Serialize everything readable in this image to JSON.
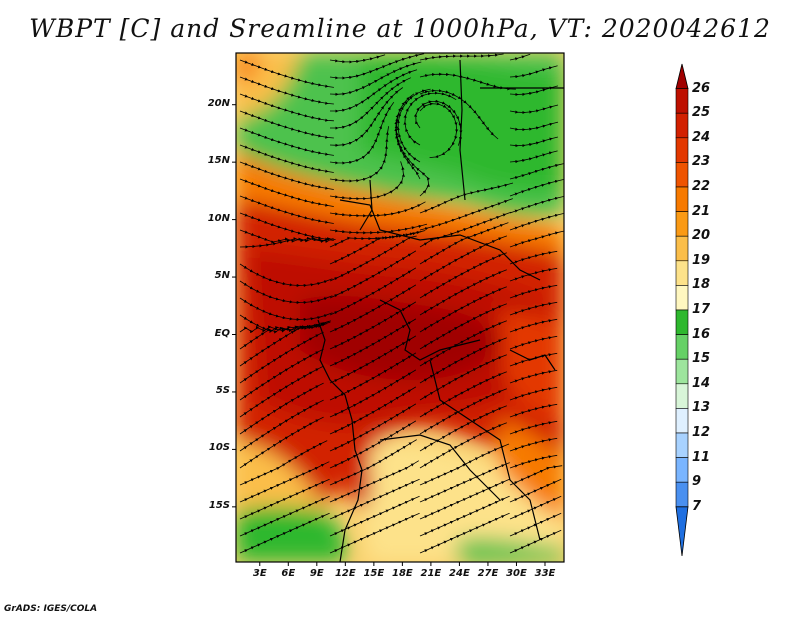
{
  "title": "WBPT [C] and Sreamline at 1000hPa, VT: 2020042612",
  "footer": "GrADS: IGES/COLA",
  "chart_data": {
    "type": "heatmap",
    "title": "WBPT [C] and Sreamline at 1000hPa, VT: 2020042612",
    "lat_ticks": [
      "20N",
      "15N",
      "10N",
      "5N",
      "EQ",
      "5S",
      "10S",
      "15S"
    ],
    "lat_values": [
      20,
      15,
      10,
      5,
      0,
      -5,
      -10,
      -15
    ],
    "lon_ticks": [
      "3E",
      "6E",
      "9E",
      "12E",
      "15E",
      "18E",
      "21E",
      "24E",
      "27E",
      "30E",
      "33E"
    ],
    "lon_values": [
      3,
      6,
      9,
      12,
      15,
      18,
      21,
      24,
      27,
      30,
      33
    ],
    "lon_range": [
      0.5,
      35
    ],
    "lat_range": [
      -19.8,
      24.5
    ],
    "colorbar": {
      "labels": [
        "26",
        "25",
        "24",
        "23",
        "22",
        "21",
        "20",
        "19",
        "18",
        "17",
        "16",
        "15",
        "14",
        "13",
        "12",
        "11",
        "9",
        "7"
      ],
      "colors": [
        "#a00000",
        "#be1000",
        "#d22000",
        "#e33800",
        "#ef5400",
        "#f77a00",
        "#fa9a15",
        "#fbbe4a",
        "#fde28a",
        "#fff7c0",
        "#2eb82e",
        "#66d166",
        "#9de59d",
        "#d8f5d8",
        "#dff0ff",
        "#a8d2ff",
        "#7ab5ff",
        "#4a90f0",
        "#1f6fe0"
      ]
    }
  }
}
